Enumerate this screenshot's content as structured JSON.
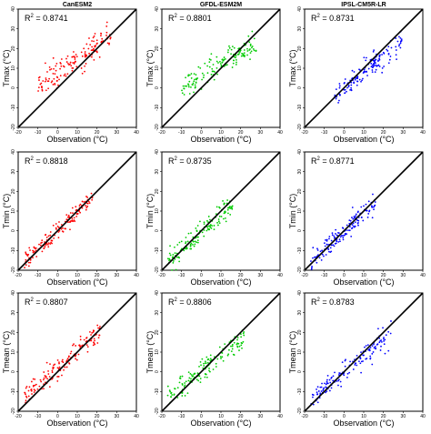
{
  "chart_data": [
    {
      "type": "scatter",
      "title": "CanESM2",
      "r2_label": "R",
      "r2_sup": "2",
      "r2_value": " = 0.8741",
      "ylabel": "Tmax (°C)",
      "xlabel": "Observation (°C)",
      "xlim": [
        -20,
        40
      ],
      "ylim": [
        -20,
        40
      ],
      "xticks": [
        "-20",
        "-10",
        "0",
        "10",
        "20",
        "30",
        "40"
      ],
      "yticks": [
        "-20",
        "-10",
        "0",
        "10",
        "20",
        "30",
        "40"
      ],
      "color": "#ff0000",
      "cloud": {
        "x": [
          -10,
          27
        ],
        "slope": 0.72,
        "intercept": 7.8,
        "spread": 3.2
      },
      "reference_line": "1:1"
    },
    {
      "type": "scatter",
      "title": "GFDL-ESM2M",
      "r2_label": "R",
      "r2_sup": "2",
      "r2_value": " = 0.8801",
      "ylabel": "Tmax (°C)",
      "xlabel": "Observation (°C)",
      "xlim": [
        -20,
        40
      ],
      "ylim": [
        -20,
        40
      ],
      "xticks": [
        "-20",
        "-10",
        "0",
        "10",
        "20",
        "30",
        "40"
      ],
      "yticks": [
        "-20",
        "-10",
        "0",
        "10",
        "20",
        "30",
        "40"
      ],
      "color": "#00cc00",
      "cloud": {
        "x": [
          -10,
          28
        ],
        "slope": 0.62,
        "intercept": 5.5,
        "spread": 3.0
      },
      "reference_line": "1:1"
    },
    {
      "type": "scatter",
      "title": "IPSL-CM5R-LR",
      "r2_label": "R",
      "r2_sup": "2",
      "r2_value": " = 0.8731",
      "ylabel": "Tmax (°C)",
      "xlabel": "Observation (°C)",
      "xlim": [
        -20,
        40
      ],
      "ylim": [
        -20,
        40
      ],
      "xticks": [
        "-20",
        "-10",
        "0",
        "10",
        "20",
        "30",
        "40"
      ],
      "yticks": [
        "-20",
        "-10",
        "0",
        "10",
        "20",
        "30",
        "40"
      ],
      "color": "#0000ff",
      "cloud": {
        "x": [
          -5,
          30
        ],
        "slope": 0.85,
        "intercept": -0.5,
        "spread": 3.0
      },
      "reference_line": "1:1"
    },
    {
      "type": "scatter",
      "title": "",
      "r2_label": "R",
      "r2_sup": "2",
      "r2_value": " = 0.8818",
      "ylabel": "Tmin (°C)",
      "xlabel": "Observation (°C)",
      "xlim": [
        -20,
        40
      ],
      "ylim": [
        -20,
        40
      ],
      "xticks": [
        "-20",
        "-10",
        "0",
        "10",
        "20",
        "30",
        "40"
      ],
      "yticks": [
        "-20",
        "-10",
        "0",
        "10",
        "20",
        "30",
        "40"
      ],
      "color": "#ff0000",
      "cloud": {
        "x": [
          -17,
          18
        ],
        "slope": 0.95,
        "intercept": 0.5,
        "spread": 2.2
      },
      "reference_line": "1:1"
    },
    {
      "type": "scatter",
      "title": "",
      "r2_label": "R",
      "r2_sup": "2",
      "r2_value": " = 0.8735",
      "ylabel": "Tmin (°C)",
      "xlabel": "Observation (°C)",
      "xlim": [
        -20,
        40
      ],
      "ylim": [
        -20,
        40
      ],
      "xticks": [
        "-20",
        "-10",
        "0",
        "10",
        "20",
        "30",
        "40"
      ],
      "yticks": [
        "-20",
        "-10",
        "0",
        "10",
        "20",
        "30",
        "40"
      ],
      "color": "#00cc00",
      "cloud": {
        "x": [
          -17,
          16
        ],
        "slope": 0.85,
        "intercept": -0.5,
        "spread": 2.5
      },
      "reference_line": "1:1"
    },
    {
      "type": "scatter",
      "title": "",
      "r2_label": "R",
      "r2_sup": "2",
      "r2_value": " = 0.8771",
      "ylabel": "Tmin (°C)",
      "xlabel": "Observation (°C)",
      "xlim": [
        -20,
        40
      ],
      "ylim": [
        -20,
        40
      ],
      "xticks": [
        "-20",
        "-10",
        "0",
        "10",
        "20",
        "30",
        "40"
      ],
      "yticks": [
        "-20",
        "-10",
        "0",
        "10",
        "20",
        "30",
        "40"
      ],
      "color": "#0000ff",
      "cloud": {
        "x": [
          -17,
          16
        ],
        "slope": 0.9,
        "intercept": -0.5,
        "spread": 2.5
      },
      "reference_line": "1:1"
    },
    {
      "type": "scatter",
      "title": "",
      "r2_label": "R",
      "r2_sup": "2",
      "r2_value": " = 0.8807",
      "ylabel": "Tmean (°C)",
      "xlabel": "Observation (°C)",
      "xlim": [
        -20,
        40
      ],
      "ylim": [
        -20,
        40
      ],
      "xticks": [
        "-20",
        "-10",
        "0",
        "10",
        "20",
        "30",
        "40"
      ],
      "yticks": [
        "-20",
        "-10",
        "0",
        "10",
        "20",
        "30",
        "40"
      ],
      "color": "#ff0000",
      "cloud": {
        "x": [
          -17,
          22
        ],
        "slope": 0.85,
        "intercept": 2.0,
        "spread": 2.6
      },
      "reference_line": "1:1"
    },
    {
      "type": "scatter",
      "title": "",
      "r2_label": "R",
      "r2_sup": "2",
      "r2_value": " = 0.8806",
      "ylabel": "Tmean (°C)",
      "xlabel": "Observation (°C)",
      "xlim": [
        -20,
        40
      ],
      "ylim": [
        -20,
        40
      ],
      "xticks": [
        "-20",
        "-10",
        "0",
        "10",
        "20",
        "30",
        "40"
      ],
      "yticks": [
        "-20",
        "-10",
        "0",
        "10",
        "20",
        "30",
        "40"
      ],
      "color": "#00cc00",
      "cloud": {
        "x": [
          -17,
          22
        ],
        "slope": 0.75,
        "intercept": 0.0,
        "spread": 2.8
      },
      "reference_line": "1:1"
    },
    {
      "type": "scatter",
      "title": "",
      "r2_label": "R",
      "r2_sup": "2",
      "r2_value": " = 0.8783",
      "ylabel": "Tmean (°C)",
      "xlabel": "Observation (°C)",
      "xlim": [
        -20,
        40
      ],
      "ylim": [
        -20,
        40
      ],
      "xticks": [
        "-20",
        "-10",
        "0",
        "10",
        "20",
        "30",
        "40"
      ],
      "yticks": [
        "-20",
        "-10",
        "0",
        "10",
        "20",
        "30",
        "40"
      ],
      "color": "#0000ff",
      "cloud": {
        "x": [
          -17,
          24
        ],
        "slope": 0.8,
        "intercept": 0.0,
        "spread": 2.8
      },
      "reference_line": "1:1"
    }
  ]
}
